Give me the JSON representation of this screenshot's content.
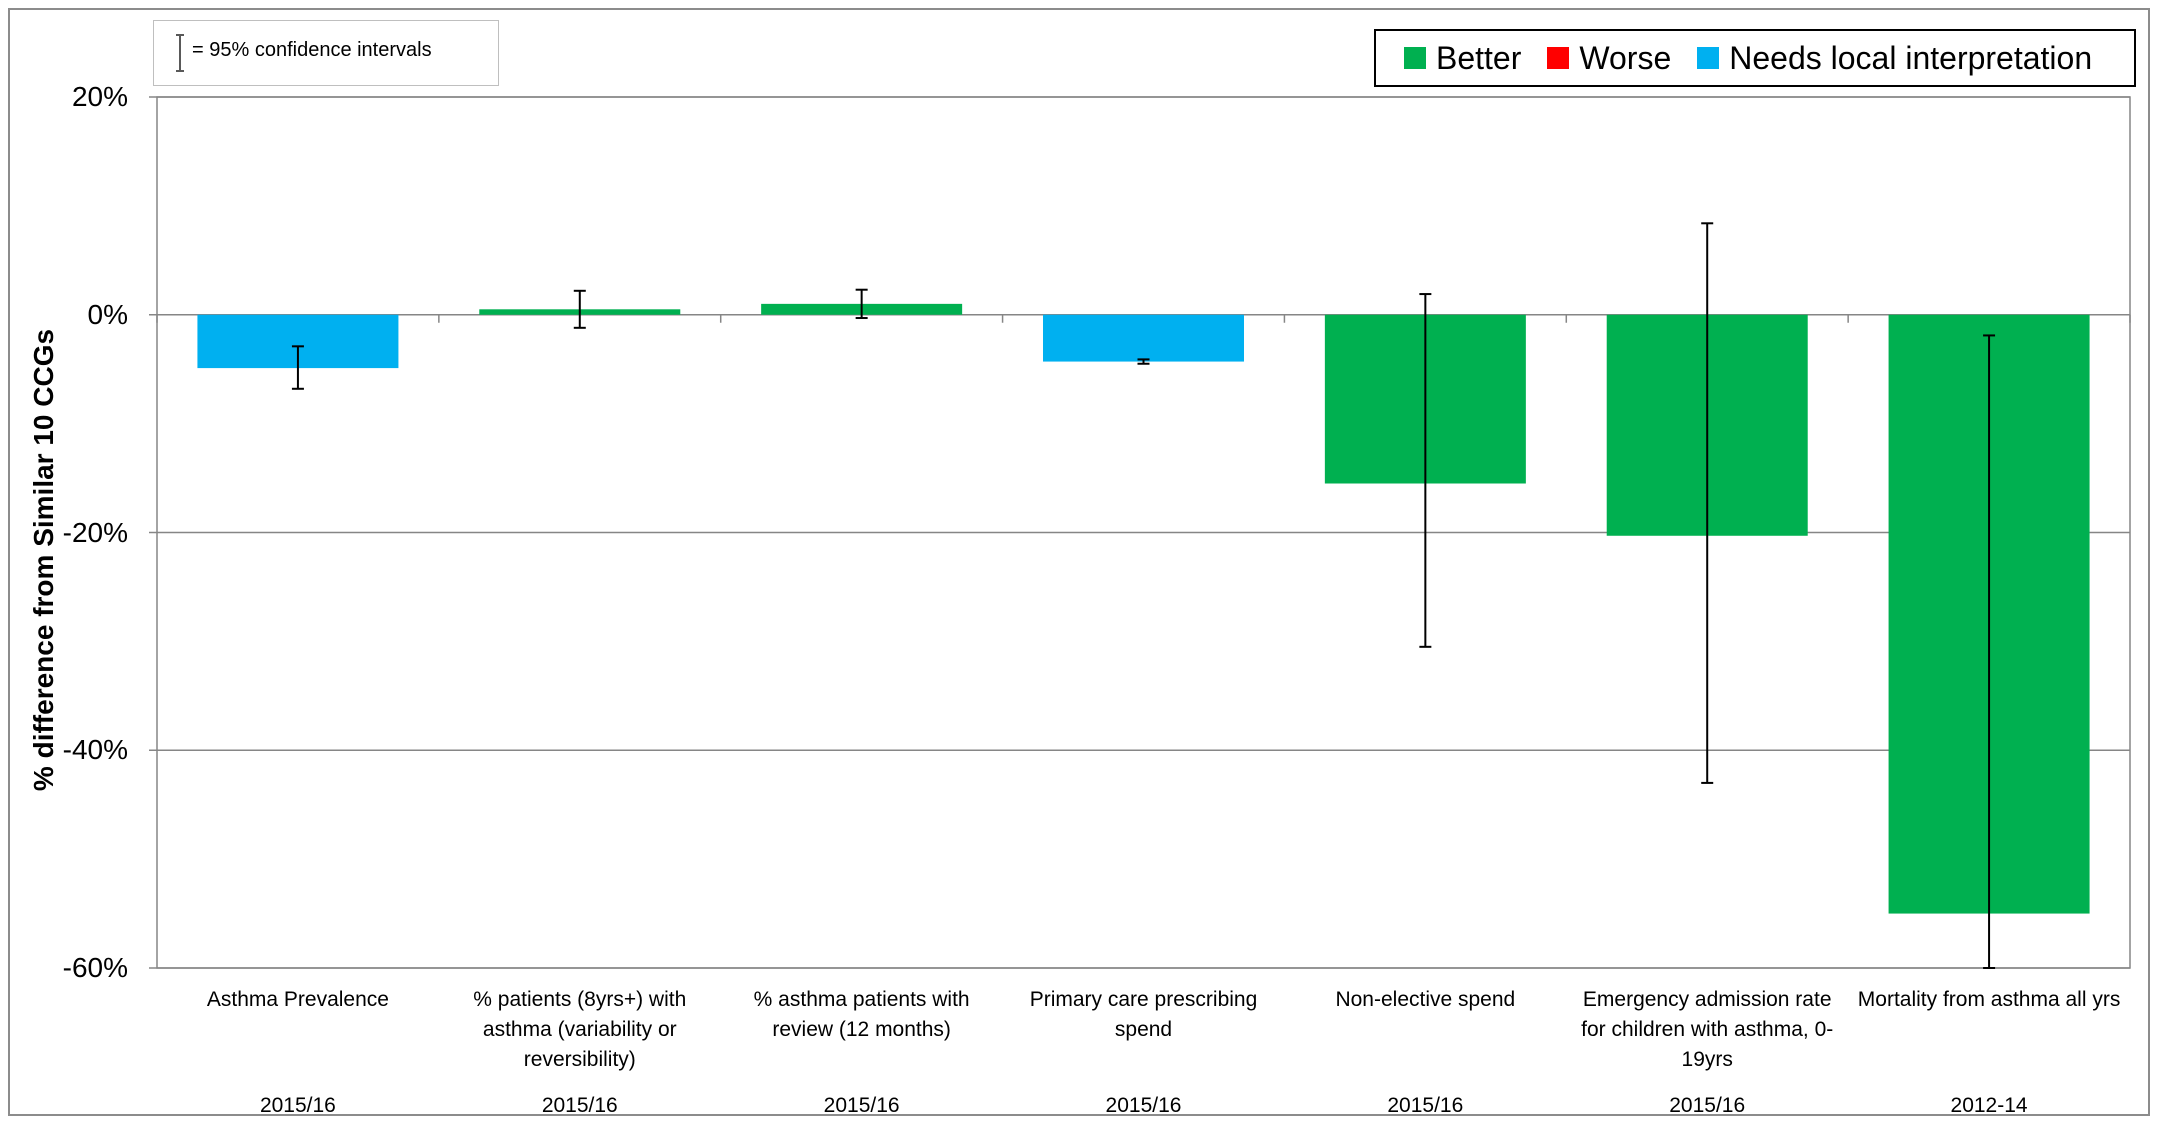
{
  "legend": {
    "ci_note": "= 95% confidence intervals",
    "items": [
      {
        "label": "Better",
        "color": "#00b050"
      },
      {
        "label": "Worse",
        "color": "#ff0000"
      },
      {
        "label": "Needs local interpretation",
        "color": "#00b0f0"
      }
    ]
  },
  "chart_data": {
    "type": "bar",
    "ylabel": "% difference from Similar 10 CCGs",
    "ylim": [
      -60,
      20
    ],
    "yticks": [
      "20%",
      "0%",
      "-20%",
      "-40%",
      "-60%"
    ],
    "ytick_values": [
      20,
      0,
      -20,
      -40,
      -60
    ],
    "grid": true,
    "legend_position": "top-right",
    "categories": [
      "Asthma Prevalence",
      "% patients (8yrs+) with asthma (variability or reversibility)",
      "% asthma patients with review (12 months)",
      "Primary care prescribing spend",
      "Non-elective spend",
      "Emergency admission rate for children with asthma, 0-19yrs",
      "Mortality from asthma all yrs"
    ],
    "periods": [
      "2015/16",
      "2015/16",
      "2015/16",
      "2015/16",
      "2015/16",
      "2015/16",
      "2012-14"
    ],
    "values": [
      -4.9,
      0.5,
      1.0,
      -4.3,
      -15.5,
      -20.3,
      -55.0
    ],
    "ci_lower": [
      -6.8,
      -1.2,
      -0.3,
      -4.5,
      -30.5,
      -43.0,
      -60.0
    ],
    "ci_upper": [
      -2.9,
      2.2,
      2.3,
      -4.1,
      1.9,
      8.4,
      -1.9
    ],
    "status": [
      "Needs local interpretation",
      "Better",
      "Better",
      "Needs local interpretation",
      "Better",
      "Better",
      "Better"
    ],
    "colors": [
      "#00b0f0",
      "#00b050",
      "#00b050",
      "#00b0f0",
      "#00b050",
      "#00b050",
      "#00b050"
    ]
  }
}
